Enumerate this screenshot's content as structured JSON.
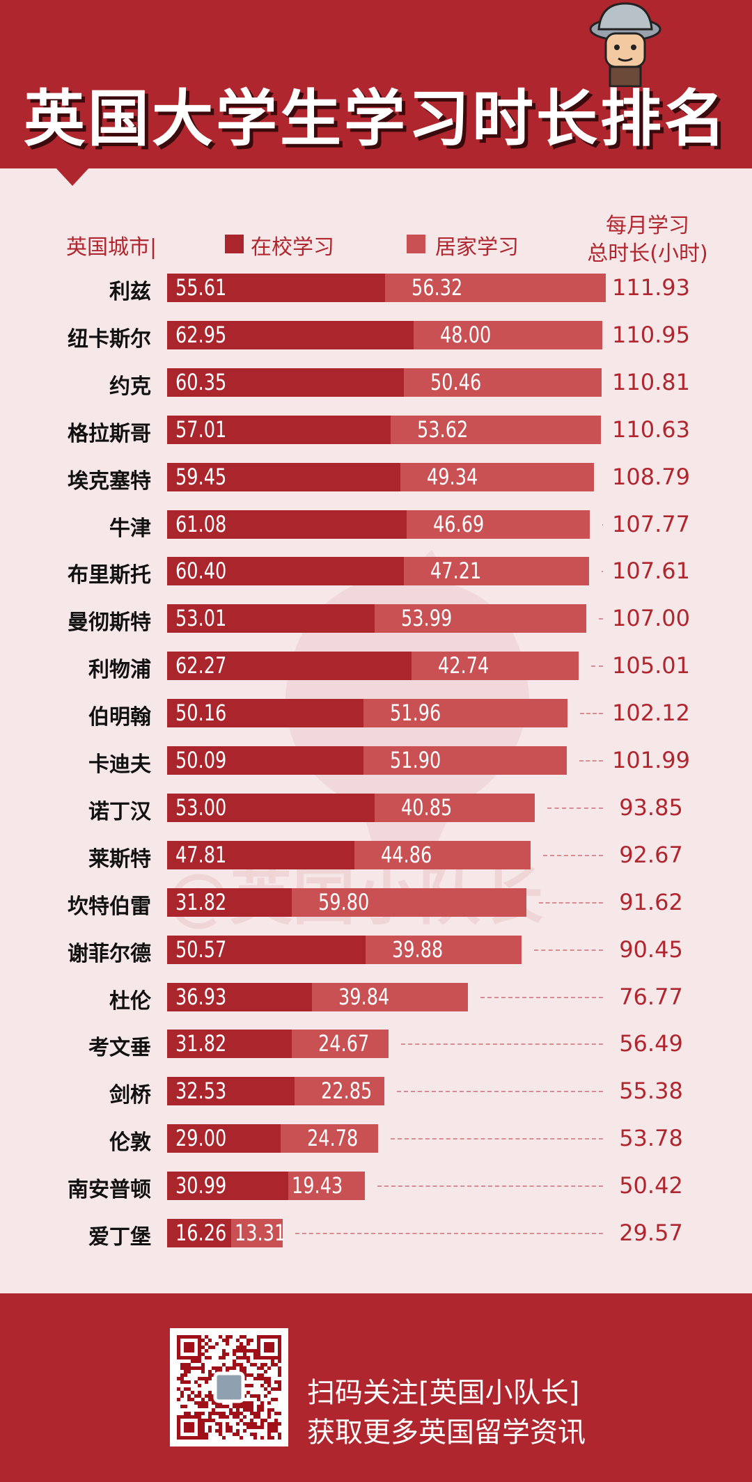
{
  "header": {
    "title": "英国大学生学习时长排名"
  },
  "watermark": "@英国小队长",
  "colors": {
    "header": "#b0262e",
    "school": "#ab252d",
    "home": "#c95053",
    "background": "#f6e7e8"
  },
  "legend": {
    "city": "英国城市|",
    "school": "在校学习",
    "home": "居家学习",
    "total_line1": "每月学习",
    "total_line2": "总时长(小时)"
  },
  "chart_data": {
    "type": "bar",
    "stacked": true,
    "orientation": "horizontal",
    "categories": [
      "利兹",
      "纽卡斯尔",
      "约克",
      "格拉斯哥",
      "埃克塞特",
      "牛津",
      "布里斯托",
      "曼彻斯特",
      "利物浦",
      "伯明翰",
      "卡迪夫",
      "诺丁汉",
      "莱斯特",
      "坎特伯雷",
      "谢菲尔德",
      "杜伦",
      "考文垂",
      "剑桥",
      "伦敦",
      "南安普顿",
      "爱丁堡"
    ],
    "series": [
      {
        "name": "在校学习",
        "values": [
          "55.61",
          "62.95",
          "60.35",
          "57.01",
          "59.45",
          "61.08",
          "60.40",
          "53.01",
          "62.27",
          "50.16",
          "50.09",
          "53.00",
          "47.81",
          "31.82",
          "50.57",
          "36.93",
          "31.82",
          "32.53",
          "29.00",
          "30.99",
          "16.26"
        ]
      },
      {
        "name": "居家学习",
        "values": [
          "56.32",
          "48.00",
          "50.46",
          "53.62",
          "49.34",
          "46.69",
          "47.21",
          "53.99",
          "42.74",
          "51.96",
          "51.90",
          "40.85",
          "44.86",
          "59.80",
          "39.88",
          "39.84",
          "24.67",
          "22.85",
          "24.78",
          "19.43",
          "13.31"
        ]
      }
    ],
    "totals": [
      "111.93",
      "110.95",
      "110.81",
      "110.63",
      "108.79",
      "107.77",
      "107.61",
      "107.00",
      "105.01",
      "102.12",
      "101.99",
      "93.85",
      "92.67",
      "91.62",
      "90.45",
      "76.77",
      "56.49",
      "55.38",
      "53.78",
      "50.42",
      "29.57"
    ],
    "legend_position": "top",
    "grid": false
  },
  "footer": {
    "line1": "扫码关注[英国小队长]",
    "line2": "获取更多英国留学资讯"
  }
}
